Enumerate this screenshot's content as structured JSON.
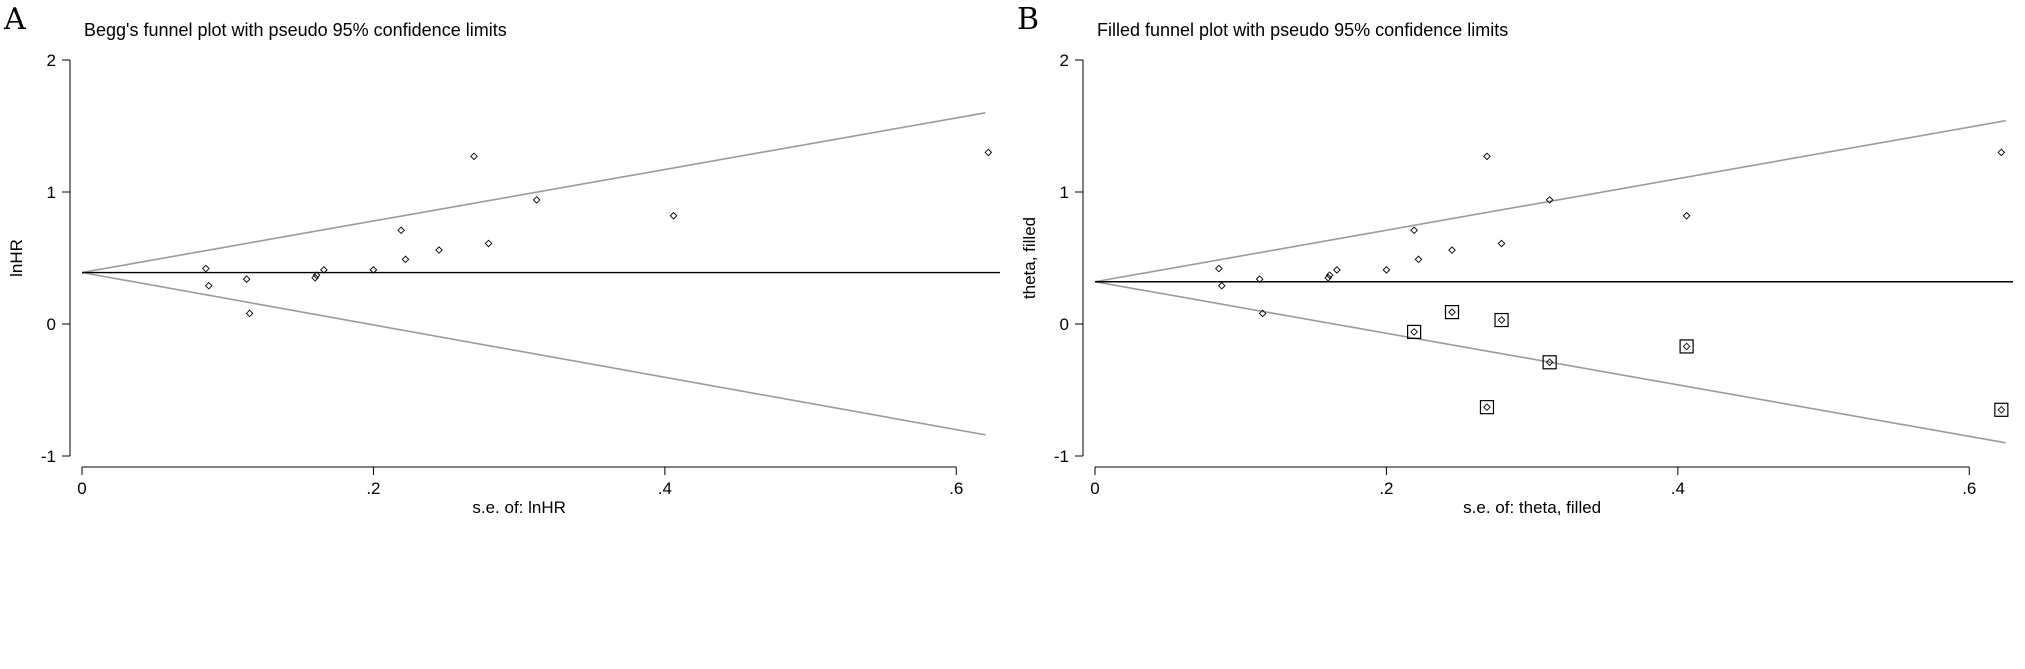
{
  "chart_data": [
    {
      "type": "scatter",
      "panel_label": "A",
      "title": "Begg's funnel plot with pseudo 95% confidence limits",
      "xlabel": "s.e. of: lnHR",
      "ylabel": "lnHR",
      "xlim": [
        0,
        0.63
      ],
      "ylim": [
        -1,
        2
      ],
      "xticks": [
        {
          "v": 0,
          "label": "0"
        },
        {
          "v": 0.2,
          "label": ".2"
        },
        {
          "v": 0.4,
          "label": ".4"
        },
        {
          "v": 0.6,
          "label": ".6"
        }
      ],
      "yticks": [
        {
          "v": -1,
          "label": "-1"
        },
        {
          "v": 0,
          "label": "0"
        },
        {
          "v": 1,
          "label": "1"
        },
        {
          "v": 2,
          "label": "2"
        }
      ],
      "pooled_estimate": 0.39,
      "limit_lines": {
        "upper": [
          [
            0,
            0.39
          ],
          [
            0.62,
            1.6
          ]
        ],
        "lower": [
          [
            0,
            0.39
          ],
          [
            0.62,
            -0.84
          ]
        ]
      },
      "points": [
        {
          "x": 0.085,
          "y": 0.42
        },
        {
          "x": 0.087,
          "y": 0.29
        },
        {
          "x": 0.113,
          "y": 0.34
        },
        {
          "x": 0.115,
          "y": 0.08
        },
        {
          "x": 0.16,
          "y": 0.35
        },
        {
          "x": 0.161,
          "y": 0.37
        },
        {
          "x": 0.166,
          "y": 0.41
        },
        {
          "x": 0.2,
          "y": 0.41
        },
        {
          "x": 0.219,
          "y": 0.71
        },
        {
          "x": 0.222,
          "y": 0.49
        },
        {
          "x": 0.245,
          "y": 0.56
        },
        {
          "x": 0.269,
          "y": 1.27
        },
        {
          "x": 0.279,
          "y": 0.61
        },
        {
          "x": 0.312,
          "y": 0.94
        },
        {
          "x": 0.406,
          "y": 0.82
        },
        {
          "x": 0.622,
          "y": 1.3
        }
      ],
      "filled_points": []
    },
    {
      "type": "scatter",
      "panel_label": "B",
      "title": "Filled funnel plot with pseudo 95% confidence limits",
      "xlabel": "s.e. of: theta, filled",
      "ylabel": "theta, filled",
      "xlim": [
        0,
        0.63
      ],
      "ylim": [
        -1,
        2
      ],
      "xticks": [
        {
          "v": 0,
          "label": "0"
        },
        {
          "v": 0.2,
          "label": ".2"
        },
        {
          "v": 0.4,
          "label": ".4"
        },
        {
          "v": 0.6,
          "label": ".6"
        }
      ],
      "yticks": [
        {
          "v": -1,
          "label": "-1"
        },
        {
          "v": 0,
          "label": "0"
        },
        {
          "v": 1,
          "label": "1"
        },
        {
          "v": 2,
          "label": "2"
        }
      ],
      "pooled_estimate": 0.32,
      "limit_lines": {
        "upper": [
          [
            0,
            0.32
          ],
          [
            0.625,
            1.54
          ]
        ],
        "lower": [
          [
            0,
            0.32
          ],
          [
            0.625,
            -0.9
          ]
        ]
      },
      "points": [
        {
          "x": 0.085,
          "y": 0.42
        },
        {
          "x": 0.087,
          "y": 0.29
        },
        {
          "x": 0.113,
          "y": 0.34
        },
        {
          "x": 0.115,
          "y": 0.08
        },
        {
          "x": 0.16,
          "y": 0.35
        },
        {
          "x": 0.161,
          "y": 0.37
        },
        {
          "x": 0.166,
          "y": 0.41
        },
        {
          "x": 0.2,
          "y": 0.41
        },
        {
          "x": 0.219,
          "y": 0.71
        },
        {
          "x": 0.222,
          "y": 0.49
        },
        {
          "x": 0.245,
          "y": 0.56
        },
        {
          "x": 0.269,
          "y": 1.27
        },
        {
          "x": 0.279,
          "y": 0.61
        },
        {
          "x": 0.312,
          "y": 0.94
        },
        {
          "x": 0.406,
          "y": 0.82
        },
        {
          "x": 0.622,
          "y": 1.3
        }
      ],
      "filled_points": [
        {
          "x": 0.219,
          "y": -0.06
        },
        {
          "x": 0.245,
          "y": 0.09
        },
        {
          "x": 0.269,
          "y": -0.63
        },
        {
          "x": 0.279,
          "y": 0.03
        },
        {
          "x": 0.312,
          "y": -0.29
        },
        {
          "x": 0.406,
          "y": -0.17
        },
        {
          "x": 0.622,
          "y": -0.65
        }
      ]
    }
  ]
}
